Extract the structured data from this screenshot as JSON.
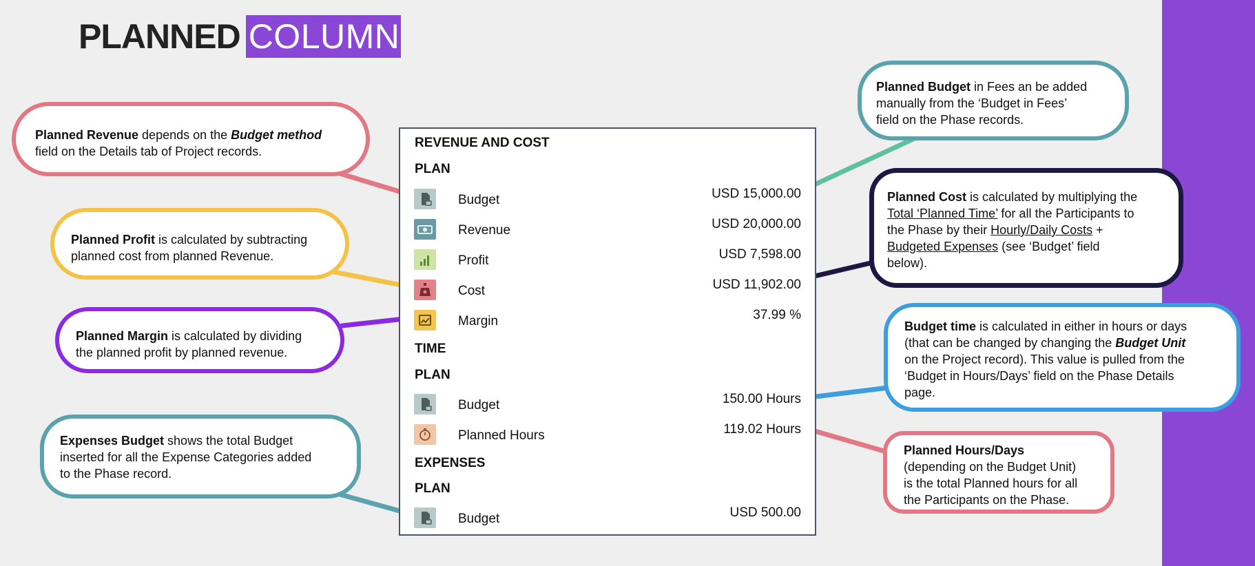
{
  "slide": {
    "title_main": "PLANNED",
    "title_highlight": "COLUMN",
    "accent_color": "#8a46d4"
  },
  "panel": {
    "revenue_and_cost": {
      "heading": "REVENUE AND COST",
      "plan_label": "PLAN",
      "rows": [
        {
          "label": "Budget",
          "value": "USD 15,000.00",
          "icon": "budget-document-icon"
        },
        {
          "label": "Revenue",
          "value": "USD 20,000.00",
          "icon": "money-icon"
        },
        {
          "label": "Profit",
          "value": "USD 7,598.00",
          "icon": "bar-chart-icon"
        },
        {
          "label": "Cost",
          "value": "USD 11,902.00",
          "icon": "money-bag-icon"
        },
        {
          "label": "Margin",
          "value": "37.99 %",
          "icon": "trend-chart-icon"
        }
      ]
    },
    "time": {
      "heading": "TIME",
      "plan_label": "PLAN",
      "rows": [
        {
          "label": "Budget",
          "value": "150.00 Hours",
          "icon": "budget-document-icon"
        },
        {
          "label": "Planned Hours",
          "value": "119.02 Hours",
          "icon": "stopwatch-icon"
        }
      ]
    },
    "expenses": {
      "heading": "EXPENSES",
      "plan_label": "PLAN",
      "rows": [
        {
          "label": "Budget",
          "value": "USD 500.00",
          "icon": "budget-document-icon"
        }
      ]
    }
  },
  "callouts": {
    "planned_revenue": {
      "color": "#e27884",
      "bold": "Planned Revenue",
      "text1": " depends on the ",
      "bold_italic": "Budget method",
      "line2": "field on the Details tab of Project records."
    },
    "planned_profit": {
      "color": "#f3c247",
      "bold": "Planned Profit",
      "text1": " is calculated by subtracting",
      "line2": "planned cost from planned Revenue."
    },
    "planned_margin": {
      "color": "#8a2be2",
      "bold": "Planned Margin",
      "text1": " is calculated by dividing",
      "line2": "the planned profit by planned revenue."
    },
    "expenses_budget": {
      "color": "#5aa3ac",
      "bold": "Expenses Budget",
      "text1": " shows the total Budget",
      "line2": "inserted for all the Expense Categories added",
      "line3": "to the Phase record."
    },
    "planned_budget": {
      "color": "#5aa3ac",
      "bold": "Planned Budget",
      "text1": " in Fees an be added",
      "line2": "manually from the ‘Budget in Fees’",
      "line3": "field on the Phase records."
    },
    "planned_cost": {
      "color": "#1d1842",
      "bold": "Planned Cost",
      "text1": " is calculated by multiplying the",
      "line2_u": "Total ‘Planned Time’",
      "line2_rest": " for all the Participants to",
      "line3_a": "the Phase by their ",
      "line3_u": "Hourly/Daily Costs",
      "line3_b": " +",
      "line4_u": "Budgeted Expenses",
      "line4_rest": " (see ‘Budget’ field",
      "line5": "below)."
    },
    "budget_time": {
      "color": "#3c9ee0",
      "bold": "Budget time",
      "text1": " is calculated in either in hours or days",
      "line2_a": "(that can be changed by changing the ",
      "line2_bi": "Budget Unit",
      "line3": "on the Project record). This value is pulled from the",
      "line4": "‘Budget in Hours/Days’ field on the Phase Details",
      "line5": "page."
    },
    "planned_hours": {
      "color": "#e27884",
      "bold": "Planned Hours/Days",
      "line2": "(depending on the Budget Unit)",
      "line3": "is the total Planned hours for all",
      "line4": "the Participants on the Phase."
    }
  }
}
